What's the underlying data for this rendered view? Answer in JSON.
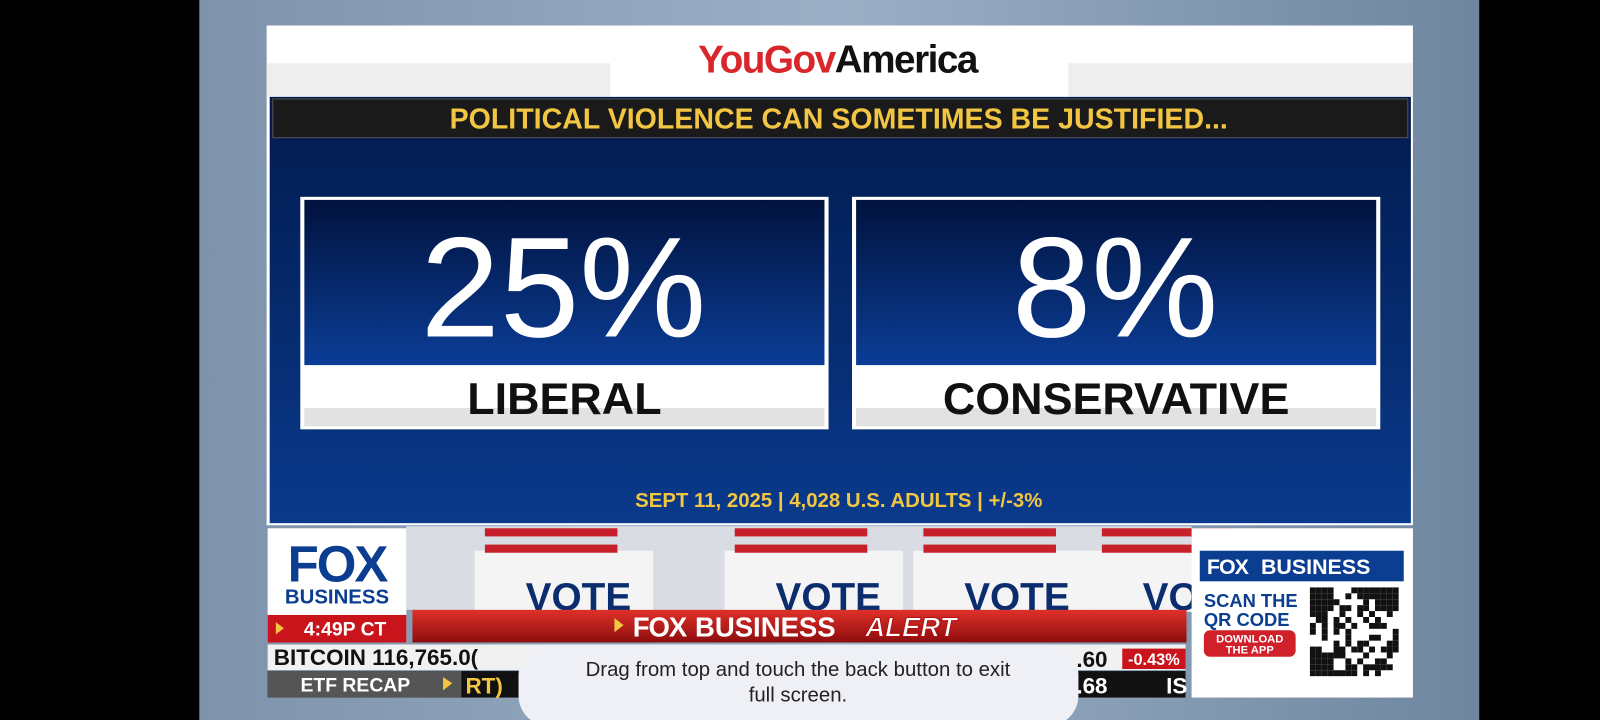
{
  "header": {
    "logo_you_gov": "YouGov",
    "logo_america": "America",
    "title": "POLITICAL VIOLENCE CAN SOMETIMES BE JUSTIFIED..."
  },
  "panels": [
    {
      "value": "25%",
      "label": "LIBERAL"
    },
    {
      "value": "8%",
      "label": "CONSERVATIVE"
    }
  ],
  "footer": "SEPT 11, 2025 | 4,028 U.S. ADULTS | +/-3%",
  "broadcast": {
    "network_fox": "FOX",
    "network_business": "BUSINESS",
    "time": "4:49P CT",
    "alert_fox": "FOX",
    "alert_business": "BUSINESS",
    "alert_word": "ALERT",
    "backdrop_words": [
      "VOTE",
      "VOTE",
      "VOTE",
      "VO"
    ],
    "ticker_top": [
      "BITCOIN 116,765.0(",
      ".60",
      "-0.43%"
    ],
    "ticker_bottom": [
      "ETF RECAP",
      "RT)",
      ".68",
      "IS"
    ],
    "promo": {
      "brand_fox": "FOX",
      "brand_business": "BUSINESS",
      "line1": "SCAN THE",
      "line2": "QR CODE",
      "button1": "DOWNLOAD",
      "button2": "THE APP"
    }
  },
  "toast": {
    "line1": "Drag from top and touch the back button to exit",
    "line2": "full screen."
  }
}
